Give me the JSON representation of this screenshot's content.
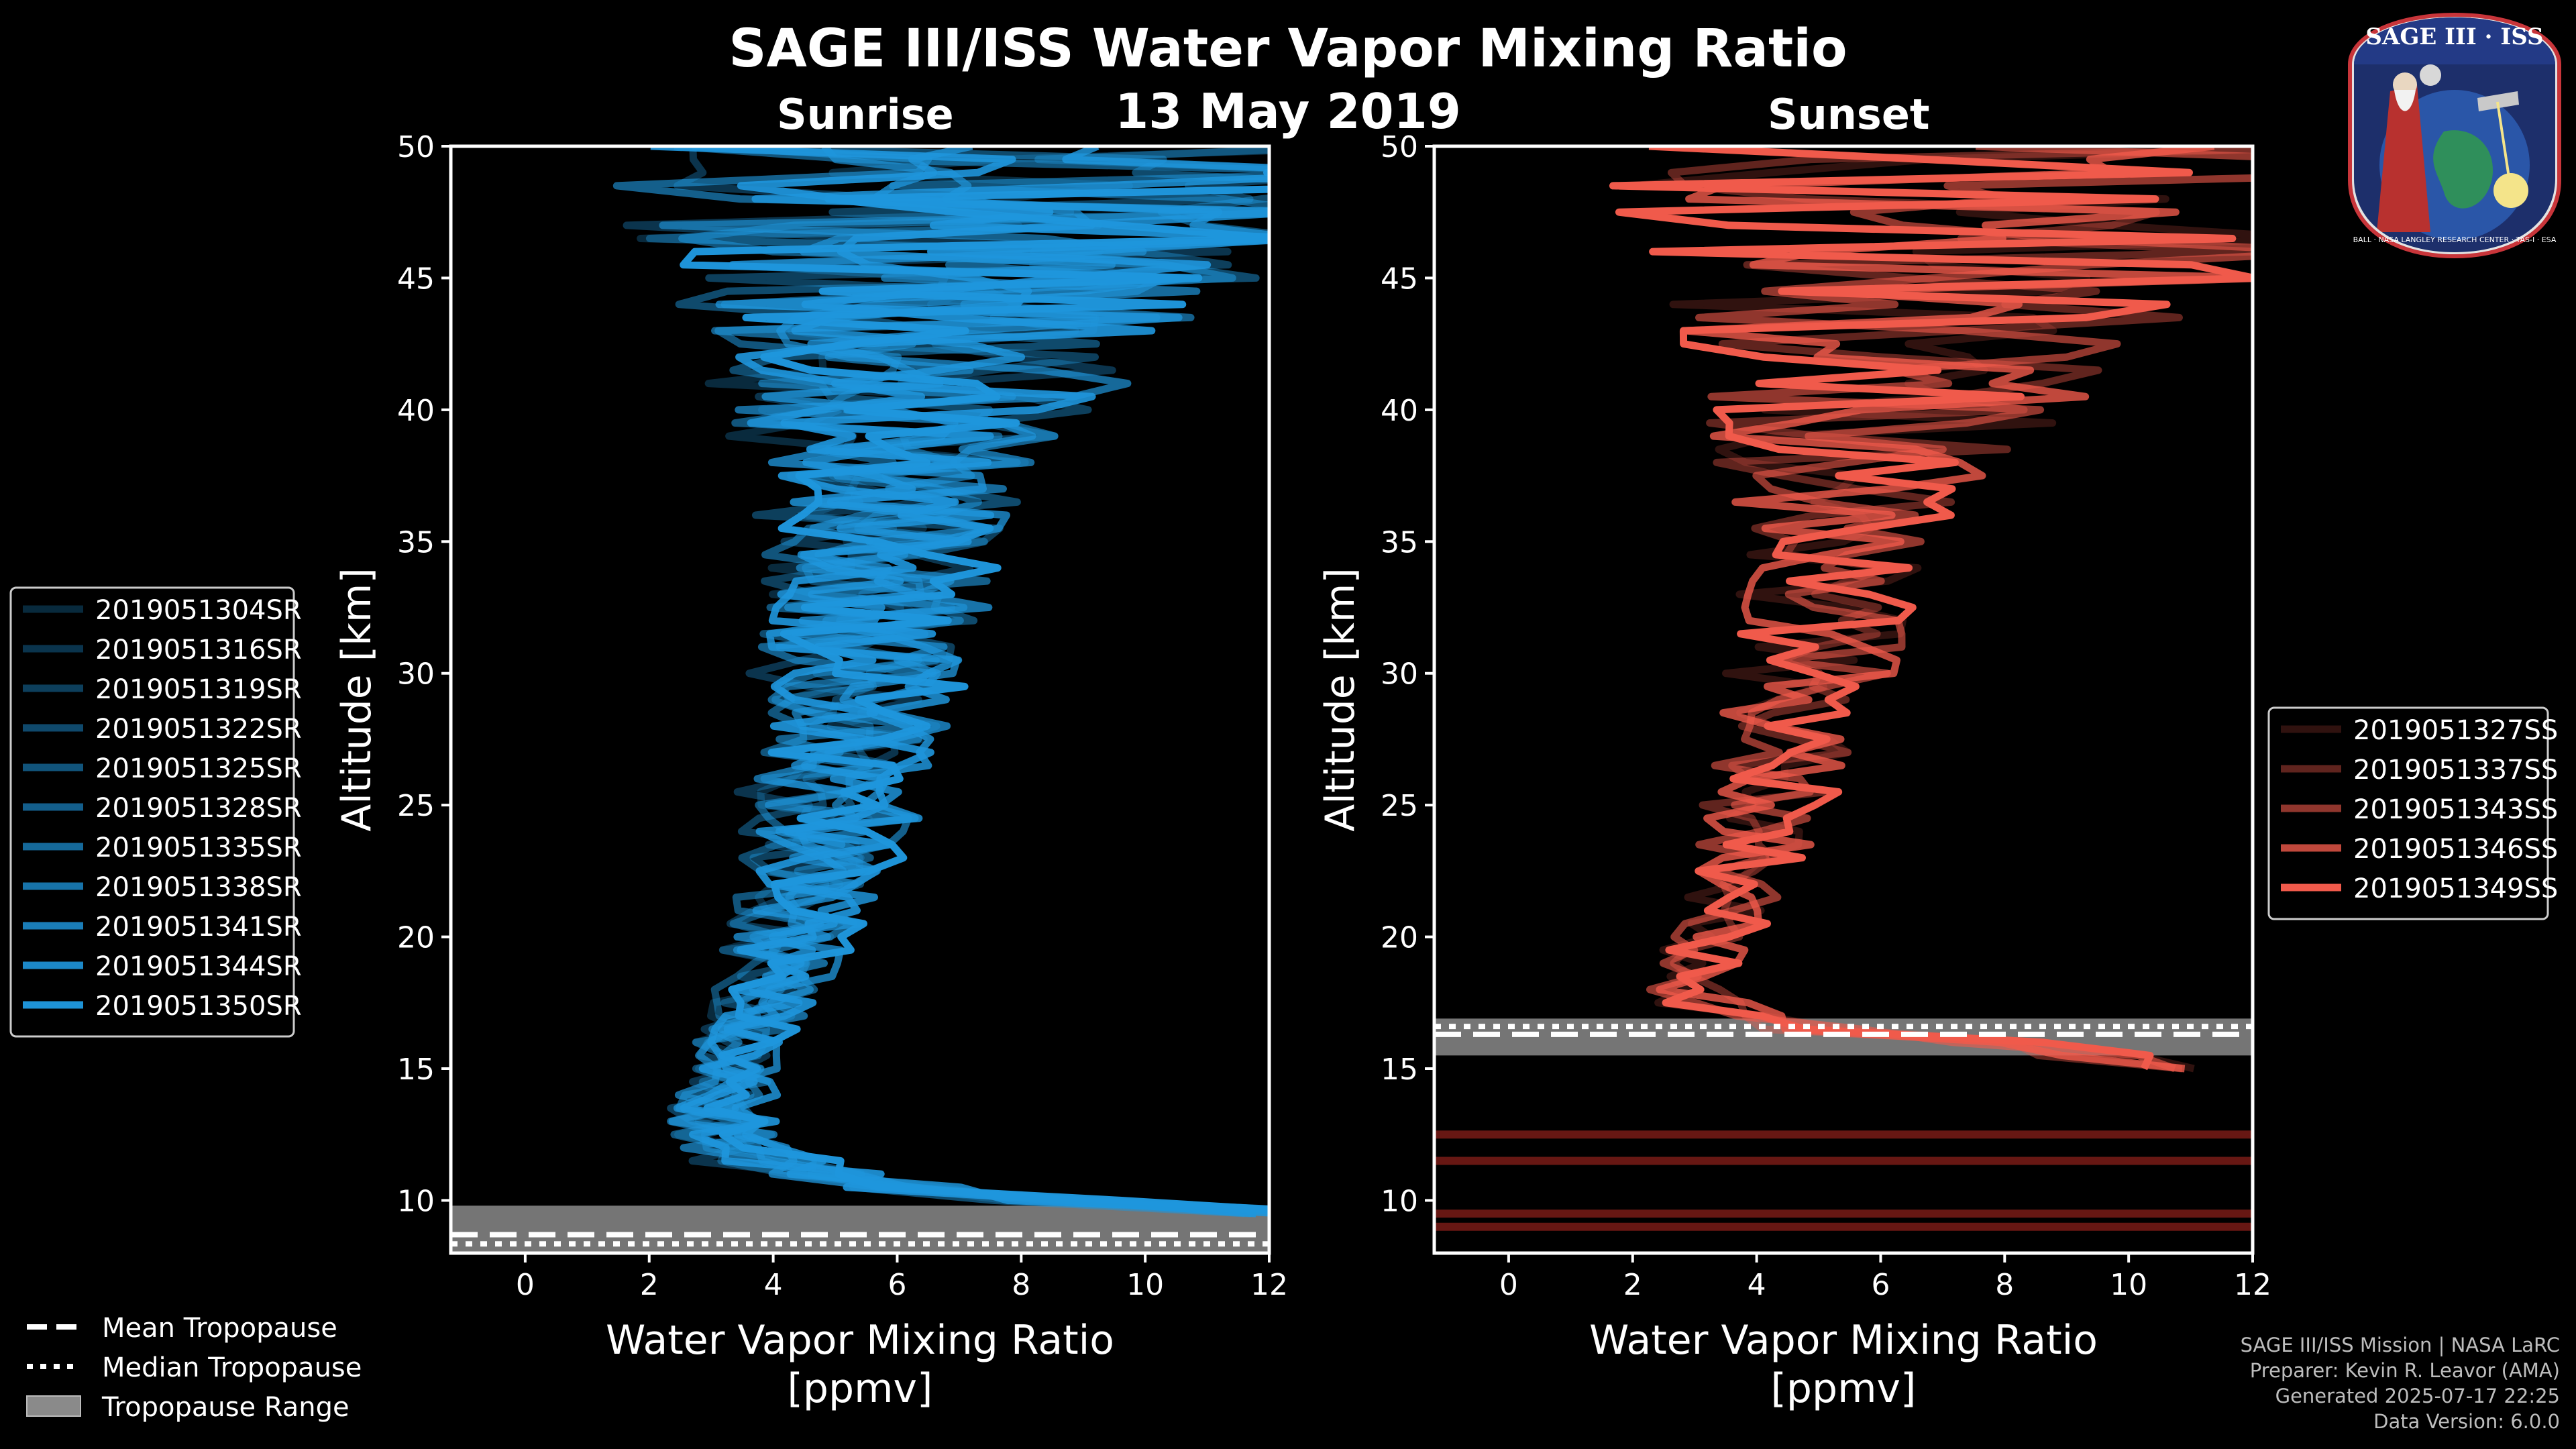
{
  "title": "SAGE III/ISS Water Vapor Mixing Ratio",
  "date": "13 May 2019",
  "logo": {
    "top_text": "SAGE III · ISS",
    "ring_text": "BALL · NASA LANGLEY RESEARCH CENTER · TAS-I · ESA"
  },
  "footer": {
    "line1": "SAGE III/ISS Mission | NASA LaRC",
    "line2": "Preparer: Kevin R. Leavor (AMA)",
    "line3": "Generated 2025-07-17 22:25",
    "line4": "Data Version: 6.0.0"
  },
  "tropopause_legend": {
    "mean": "Mean Tropopause",
    "median": "Median Tropopause",
    "range": "Tropopause Range"
  },
  "chart_data": [
    {
      "type": "line",
      "title": "Sunrise",
      "xlabel": "Water Vapor Mixing Ratio [ppmv]",
      "xlabel_line1": "Water Vapor Mixing Ratio",
      "xlabel_line2": "[ppmv]",
      "ylabel": "Altitude [km]",
      "xlim": [
        -1.2,
        12
      ],
      "ylim": [
        8,
        50
      ],
      "xticks": [
        0,
        2,
        4,
        6,
        8,
        10,
        12
      ],
      "yticks": [
        10,
        15,
        20,
        25,
        30,
        35,
        40,
        45,
        50
      ],
      "color": "#1f96dc",
      "tropopause": {
        "mean": 8.7,
        "median": 8.35,
        "range": [
          8.0,
          9.8
        ]
      },
      "series": [
        {
          "name": "2019051304SR",
          "alpha": 0.28
        },
        {
          "name": "2019051316SR",
          "alpha": 0.35
        },
        {
          "name": "2019051319SR",
          "alpha": 0.42
        },
        {
          "name": "2019051322SR",
          "alpha": 0.49
        },
        {
          "name": "2019051325SR",
          "alpha": 0.56
        },
        {
          "name": "2019051328SR",
          "alpha": 0.63
        },
        {
          "name": "2019051335SR",
          "alpha": 0.7
        },
        {
          "name": "2019051338SR",
          "alpha": 0.77
        },
        {
          "name": "2019051341SR",
          "alpha": 0.84
        },
        {
          "name": "2019051344SR",
          "alpha": 0.91
        },
        {
          "name": "2019051350SR",
          "alpha": 0.98
        }
      ],
      "mean_profile": {
        "altitude": [
          9.5,
          10,
          10.5,
          11,
          11.5,
          12,
          13,
          14,
          15,
          16,
          17,
          18,
          19,
          20,
          22,
          24,
          26,
          28,
          30,
          32,
          34,
          36,
          38,
          40,
          42,
          44,
          46,
          48,
          50
        ],
        "value": [
          12.5,
          8.5,
          6.0,
          4.7,
          3.9,
          3.5,
          3.2,
          3.2,
          3.3,
          3.5,
          3.7,
          3.9,
          4.1,
          4.3,
          4.6,
          4.9,
          5.1,
          5.3,
          5.5,
          5.6,
          5.8,
          5.9,
          6.1,
          6.3,
          6.6,
          7.0,
          7.4,
          7.8,
          8.2
        ]
      },
      "spread_profile": {
        "altitude": [
          9.5,
          12,
          15,
          20,
          25,
          30,
          35,
          38,
          42,
          45,
          48,
          50
        ],
        "value": [
          0.8,
          0.7,
          0.5,
          0.7,
          1.0,
          1.2,
          1.4,
          1.8,
          2.5,
          3.5,
          4.5,
          5.0
        ]
      }
    },
    {
      "type": "line",
      "title": "Sunset",
      "xlabel": "Water Vapor Mixing Ratio [ppmv]",
      "xlabel_line1": "Water Vapor Mixing Ratio",
      "xlabel_line2": "[ppmv]",
      "ylabel": "Altitude [km]",
      "xlim": [
        -1.2,
        12
      ],
      "ylim": [
        8,
        50
      ],
      "xticks": [
        0,
        2,
        4,
        6,
        8,
        10,
        12
      ],
      "yticks": [
        10,
        15,
        20,
        25,
        30,
        35,
        40,
        45,
        50
      ],
      "color": "#f05a4b",
      "tropopause": {
        "mean": 16.3,
        "median": 16.6,
        "range": [
          15.5,
          16.9
        ]
      },
      "series": [
        {
          "name": "2019051327SS",
          "alpha": 0.2
        },
        {
          "name": "2019051337SS",
          "alpha": 0.4
        },
        {
          "name": "2019051343SS",
          "alpha": 0.6
        },
        {
          "name": "2019051346SS",
          "alpha": 0.8
        },
        {
          "name": "2019051349SS",
          "alpha": 1.0
        }
      ],
      "mean_profile": {
        "altitude": [
          15,
          16,
          16.5,
          17,
          17.5,
          18,
          19,
          20,
          22,
          24,
          26,
          28,
          30,
          32,
          34,
          36,
          38,
          40,
          42,
          44,
          46,
          48,
          50
        ],
        "value": [
          11.0,
          8.0,
          5.0,
          3.8,
          3.2,
          3.0,
          3.1,
          3.3,
          3.7,
          4.0,
          4.3,
          4.6,
          4.9,
          5.1,
          5.3,
          5.5,
          5.8,
          6.2,
          6.6,
          7.2,
          7.8,
          8.4,
          9.0
        ]
      },
      "spread_profile": {
        "altitude": [
          15,
          18,
          20,
          25,
          30,
          35,
          38,
          42,
          45,
          48,
          50
        ],
        "value": [
          0.7,
          0.5,
          0.5,
          0.8,
          1.0,
          1.2,
          1.7,
          2.8,
          4.0,
          5.0,
          5.5
        ]
      },
      "horizontal_bands": [
        9.0,
        9.5,
        11.5,
        12.5
      ]
    }
  ]
}
